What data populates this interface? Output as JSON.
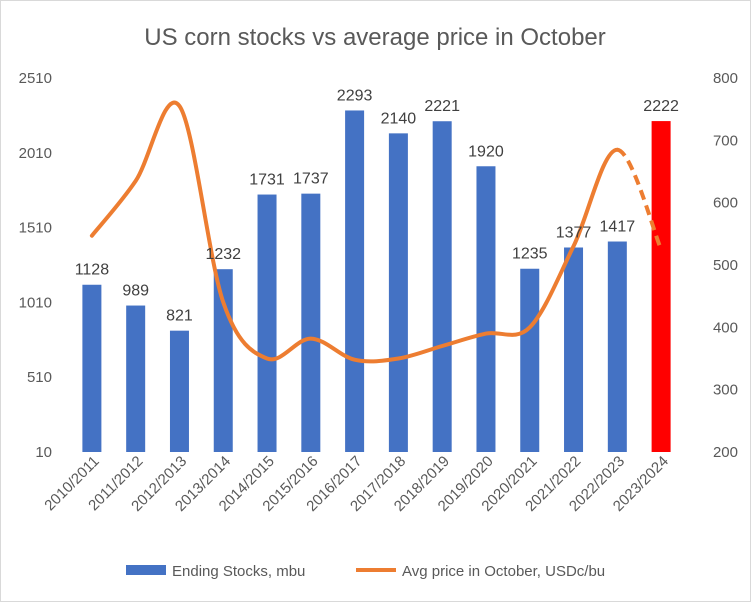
{
  "chart_data": {
    "type": "bar",
    "title": "US corn stocks vs average price in October",
    "categories": [
      "2010/2011",
      "2011/2012",
      "2012/2013",
      "2013/2014",
      "2014/2015",
      "2015/2016",
      "2016/2017",
      "2017/2018",
      "2018/2019",
      "2019/2020",
      "2020/2021",
      "2021/2022",
      "2022/2023",
      "2023/2024"
    ],
    "series": [
      {
        "name": "Ending Stocks, mbu",
        "type": "bar",
        "axis": "left",
        "color": "#4472C4",
        "highlight_color": "#FF0000",
        "highlight_index": 13,
        "values": [
          1128,
          989,
          821,
          1232,
          1731,
          1737,
          2293,
          2140,
          2221,
          1920,
          1235,
          1377,
          1417,
          2222
        ],
        "labels": [
          "1128",
          "989",
          "821",
          "1232",
          "1731",
          "1737",
          "2293",
          "2140",
          "2221",
          "1920",
          "1235",
          "1377",
          "1417",
          "2222"
        ]
      },
      {
        "name": "Avg price in October, USDc/bu",
        "type": "line",
        "axis": "right",
        "color": "#ED7D31",
        "values": [
          547,
          635,
          755,
          440,
          350,
          382,
          348,
          350,
          370,
          390,
          400,
          530,
          685,
          525
        ],
        "dashed_last_segment": true
      }
    ],
    "y_left": {
      "min": 10,
      "max": 2510,
      "ticks": [
        "2510",
        "2010",
        "1510",
        "1010",
        "510",
        "10"
      ]
    },
    "y_right": {
      "min": 200,
      "max": 800,
      "ticks": [
        "800",
        "700",
        "600",
        "500",
        "400",
        "300",
        "200"
      ]
    },
    "legend_position": "bottom"
  }
}
